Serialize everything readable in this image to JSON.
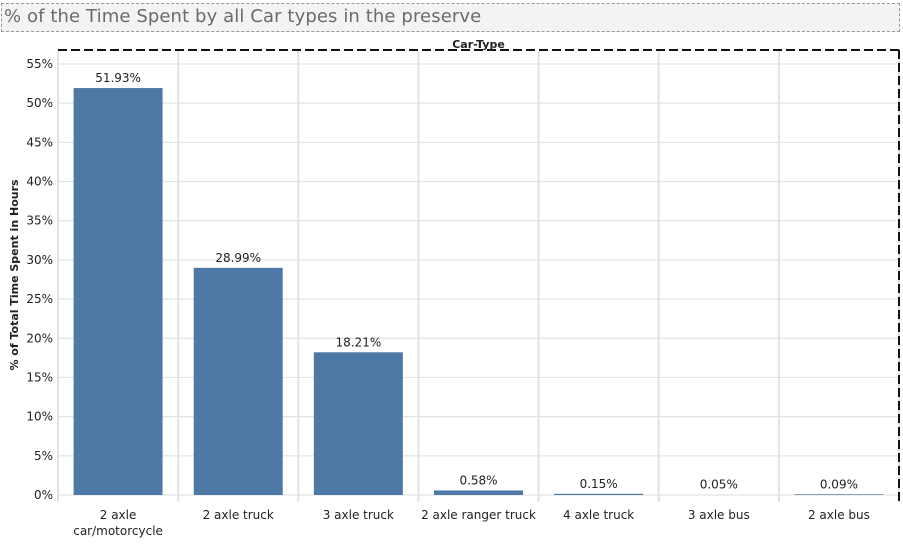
{
  "title": "% of the Time Spent by all Car types in the preserve",
  "chart_data": {
    "type": "bar",
    "column_header": "Car-Type",
    "ylabel": "% of Total Time Spent in Hours",
    "ylim": [
      0,
      55
    ],
    "y_ticks": [
      "0%",
      "5%",
      "10%",
      "15%",
      "20%",
      "25%",
      "30%",
      "35%",
      "40%",
      "45%",
      "50%",
      "55%"
    ],
    "categories": [
      [
        "2 axle",
        "car/motorcycle"
      ],
      [
        "2 axle truck"
      ],
      [
        "3 axle truck"
      ],
      [
        "2 axle ranger truck"
      ],
      [
        "4 axle truck"
      ],
      [
        "3 axle bus"
      ],
      [
        "2 axle bus"
      ]
    ],
    "values": [
      51.93,
      28.99,
      18.21,
      0.58,
      0.15,
      0.05,
      0.09
    ],
    "data_labels": [
      "51.93%",
      "28.99%",
      "18.21%",
      "0.58%",
      "0.15%",
      "0.05%",
      "0.09%"
    ],
    "bar_color": "#4e79a7",
    "grid": true
  }
}
